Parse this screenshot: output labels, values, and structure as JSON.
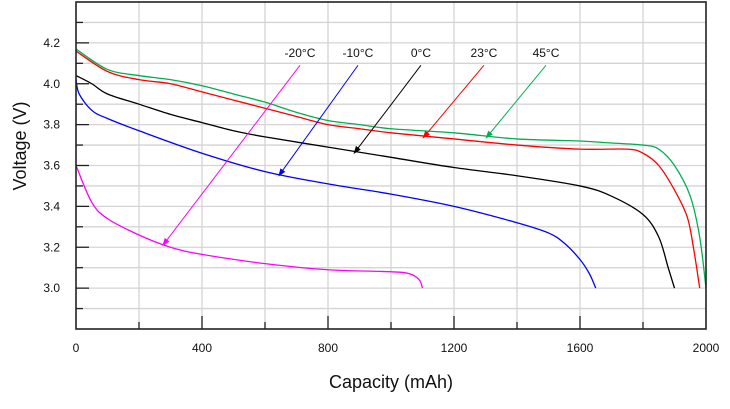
{
  "chart_data": {
    "type": "line",
    "title": "",
    "xlabel": "Capacity (mAh)",
    "ylabel": "Voltage (V)",
    "xlim": [
      0,
      2000
    ],
    "ylim": [
      2.8,
      4.4
    ],
    "xticks": [
      0,
      400,
      800,
      1200,
      1600,
      2000
    ],
    "xtick_labels": [
      "0",
      "400",
      "800",
      "1200",
      "1600",
      "2000"
    ],
    "yticks": [
      3.0,
      3.2,
      3.4,
      3.6,
      3.8,
      4.0,
      4.2
    ],
    "ytick_labels": [
      "3.0",
      "3.2",
      "3.4",
      "3.6",
      "3.8",
      "4.0",
      "4.2"
    ],
    "grid": true,
    "x_grid_step": 200,
    "y_grid_step": 0.1,
    "series": [
      {
        "name": "-20°C",
        "color": "#ff00ff",
        "x": [
          0,
          50,
          100,
          200,
          300,
          400,
          600,
          800,
          1000,
          1060,
          1090,
          1100
        ],
        "y": [
          3.6,
          3.42,
          3.34,
          3.26,
          3.2,
          3.165,
          3.12,
          3.09,
          3.08,
          3.07,
          3.04,
          3.0
        ],
        "annotation": {
          "label_x": 711,
          "label_y": 4.15,
          "from": [
            711,
            4.09
          ],
          "to": [
            276,
            3.21
          ]
        }
      },
      {
        "name": "-10°C",
        "color": "#0000ff",
        "x": [
          0,
          10,
          50,
          100,
          200,
          400,
          600,
          800,
          1000,
          1200,
          1400,
          1500,
          1550,
          1600,
          1630,
          1650
        ],
        "y": [
          4.02,
          3.95,
          3.87,
          3.83,
          3.77,
          3.66,
          3.57,
          3.51,
          3.46,
          3.4,
          3.32,
          3.27,
          3.22,
          3.14,
          3.07,
          3.0
        ],
        "annotation": {
          "label_x": 895,
          "label_y": 4.15,
          "from": [
            895,
            4.09
          ],
          "to": [
            644,
            3.55
          ]
        }
      },
      {
        "name": "0°C",
        "color": "#000000",
        "x": [
          0,
          50,
          100,
          200,
          300,
          400,
          500,
          600,
          800,
          1000,
          1200,
          1400,
          1600,
          1700,
          1800,
          1850,
          1880,
          1900
        ],
        "y": [
          4.04,
          4.0,
          3.95,
          3.9,
          3.85,
          3.81,
          3.77,
          3.74,
          3.69,
          3.64,
          3.59,
          3.55,
          3.5,
          3.45,
          3.36,
          3.25,
          3.1,
          3.0
        ],
        "annotation": {
          "label_x": 1095,
          "label_y": 4.15,
          "from": [
            1095,
            4.09
          ],
          "to": [
            883,
            3.66
          ]
        }
      },
      {
        "name": "23°C",
        "color": "#ff0000",
        "x": [
          0,
          100,
          200,
          300,
          400,
          500,
          600,
          700,
          800,
          900,
          1000,
          1200,
          1400,
          1600,
          1750,
          1800,
          1850,
          1900,
          1940,
          1960,
          1980
        ],
        "y": [
          4.16,
          4.06,
          4.02,
          4.0,
          3.96,
          3.92,
          3.88,
          3.84,
          3.8,
          3.78,
          3.76,
          3.73,
          3.7,
          3.68,
          3.68,
          3.66,
          3.6,
          3.48,
          3.35,
          3.2,
          3.0
        ],
        "annotation": {
          "label_x": 1295,
          "label_y": 4.15,
          "from": [
            1295,
            4.09
          ],
          "to": [
            1102,
            3.735
          ]
        }
      },
      {
        "name": "45°C",
        "color": "#00b050",
        "x": [
          0,
          100,
          200,
          300,
          400,
          500,
          600,
          700,
          800,
          900,
          1000,
          1200,
          1400,
          1600,
          1700,
          1800,
          1850,
          1900,
          1950,
          1980,
          2000
        ],
        "y": [
          4.17,
          4.07,
          4.04,
          4.02,
          3.99,
          3.95,
          3.91,
          3.86,
          3.82,
          3.8,
          3.78,
          3.76,
          3.73,
          3.72,
          3.71,
          3.7,
          3.68,
          3.6,
          3.45,
          3.25,
          3.0
        ],
        "annotation": {
          "label_x": 1492,
          "label_y": 4.15,
          "from": [
            1492,
            4.09
          ],
          "to": [
            1302,
            3.735
          ]
        }
      }
    ]
  }
}
